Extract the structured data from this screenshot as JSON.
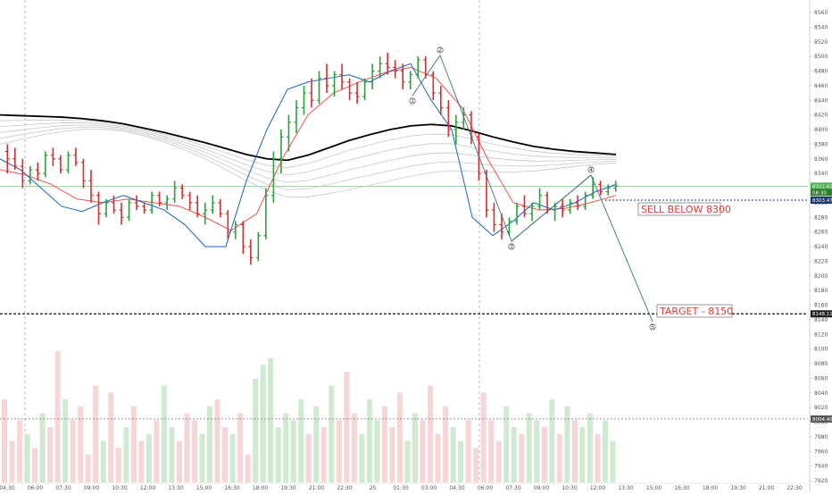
{
  "chart_data": {
    "type": "candlestick",
    "price_axis": {
      "ylim": [
        7920,
        8560
      ],
      "ticks": [
        8560,
        8540,
        8520,
        8500,
        8480,
        8460,
        8440,
        8420,
        8400,
        8380,
        8360,
        8340,
        8320,
        8300,
        8280,
        8260,
        8240,
        8220,
        8200,
        8180,
        8160,
        8140,
        8120,
        8100,
        8080,
        8060,
        8040,
        8020,
        8000,
        7980,
        7960,
        7940,
        7920
      ]
    },
    "time_axis": {
      "ticks": [
        "04:30",
        "06:00",
        "07:30",
        "09:00",
        "10:30",
        "12:00",
        "13:30",
        "15:00",
        "16:30",
        "18:00",
        "19:30",
        "21:00",
        "22:30",
        "25",
        "01:30",
        "03:00",
        "04:30",
        "06:00",
        "07:30",
        "09:00",
        "10:30",
        "12:00",
        "13:30",
        "15:00",
        "16:30",
        "18:00",
        "19:30",
        "21:00",
        "22:30"
      ]
    },
    "price_tags": [
      {
        "value": "8322.63",
        "color": "#4caf50"
      },
      {
        "value": "08:30",
        "color": "#2e7d32"
      },
      {
        "value": "8303.47",
        "color": "#1a3a6b"
      },
      {
        "value": "8148.11",
        "color": "#222222"
      },
      {
        "value": "8004.40",
        "color": "#555555"
      }
    ],
    "levels": {
      "current": 8322.63,
      "sell_below": 8303.47,
      "target": 8148.11,
      "volume_ref": 8004.4
    },
    "wave_labels": [
      "1",
      "2",
      "3",
      "4",
      "5"
    ],
    "annotations": [
      {
        "text": "SELL BELOW 8300"
      },
      {
        "text": "TARGET - 8150"
      }
    ],
    "candles": [
      [
        8370,
        8380,
        8340,
        8360
      ],
      [
        8360,
        8375,
        8345,
        8350
      ],
      [
        8350,
        8360,
        8320,
        8330
      ],
      [
        8330,
        8350,
        8325,
        8345
      ],
      [
        8345,
        8355,
        8330,
        8340
      ],
      [
        8340,
        8370,
        8335,
        8365
      ],
      [
        8365,
        8375,
        8350,
        8360
      ],
      [
        8360,
        8365,
        8340,
        8345
      ],
      [
        8345,
        8370,
        8340,
        8365
      ],
      [
        8365,
        8375,
        8350,
        8355
      ],
      [
        8355,
        8360,
        8320,
        8330
      ],
      [
        8330,
        8345,
        8300,
        8310
      ],
      [
        8310,
        8315,
        8270,
        8285
      ],
      [
        8285,
        8305,
        8280,
        8300
      ],
      [
        8300,
        8310,
        8285,
        8290
      ],
      [
        8290,
        8300,
        8270,
        8280
      ],
      [
        8280,
        8305,
        8275,
        8300
      ],
      [
        8300,
        8310,
        8290,
        8295
      ],
      [
        8295,
        8300,
        8285,
        8290
      ],
      [
        8290,
        8315,
        8285,
        8310
      ],
      [
        8310,
        8315,
        8295,
        8300
      ],
      [
        8300,
        8310,
        8290,
        8305
      ],
      [
        8305,
        8330,
        8300,
        8320
      ],
      [
        8320,
        8325,
        8305,
        8310
      ],
      [
        8310,
        8315,
        8290,
        8300
      ],
      [
        8300,
        8310,
        8280,
        8285
      ],
      [
        8285,
        8300,
        8270,
        8290
      ],
      [
        8290,
        8310,
        8285,
        8300
      ],
      [
        8300,
        8305,
        8280,
        8285
      ],
      [
        8285,
        8290,
        8250,
        8260
      ],
      [
        8260,
        8275,
        8250,
        8270
      ],
      [
        8270,
        8275,
        8230,
        8240
      ],
      [
        8240,
        8250,
        8215,
        8225
      ],
      [
        8225,
        8260,
        8220,
        8255
      ],
      [
        8255,
        8320,
        8250,
        8310
      ],
      [
        8310,
        8370,
        8300,
        8360
      ],
      [
        8360,
        8400,
        8340,
        8390
      ],
      [
        8390,
        8420,
        8370,
        8410
      ],
      [
        8410,
        8440,
        8395,
        8430
      ],
      [
        8430,
        8460,
        8420,
        8450
      ],
      [
        8450,
        8470,
        8430,
        8440
      ],
      [
        8440,
        8480,
        8435,
        8470
      ],
      [
        8470,
        8490,
        8450,
        8460
      ],
      [
        8460,
        8480,
        8445,
        8475
      ],
      [
        8475,
        8490,
        8455,
        8465
      ],
      [
        8465,
        8470,
        8440,
        8450
      ],
      [
        8450,
        8465,
        8435,
        8445
      ],
      [
        8445,
        8470,
        8440,
        8465
      ],
      [
        8465,
        8490,
        8455,
        8480
      ],
      [
        8480,
        8500,
        8470,
        8490
      ],
      [
        8490,
        8505,
        8475,
        8485
      ],
      [
        8485,
        8495,
        8470,
        8480
      ],
      [
        8480,
        8490,
        8455,
        8465
      ],
      [
        8465,
        8480,
        8455,
        8475
      ],
      [
        8475,
        8500,
        8470,
        8495
      ],
      [
        8495,
        8500,
        8470,
        8475
      ],
      [
        8475,
        8480,
        8440,
        8450
      ],
      [
        8450,
        8460,
        8420,
        8430
      ],
      [
        8430,
        8440,
        8390,
        8400
      ],
      [
        8400,
        8420,
        8380,
        8410
      ],
      [
        8410,
        8430,
        8400,
        8420
      ],
      [
        8420,
        8425,
        8380,
        8390
      ],
      [
        8390,
        8395,
        8330,
        8340
      ],
      [
        8340,
        8345,
        8280,
        8290
      ],
      [
        8290,
        8300,
        8260,
        8270
      ],
      [
        8270,
        8285,
        8250,
        8260
      ],
      [
        8260,
        8280,
        8255,
        8275
      ],
      [
        8275,
        8300,
        8270,
        8295
      ],
      [
        8295,
        8310,
        8280,
        8285
      ],
      [
        8285,
        8300,
        8275,
        8295
      ],
      [
        8295,
        8320,
        8290,
        8310
      ],
      [
        8310,
        8315,
        8285,
        8290
      ],
      [
        8290,
        8300,
        8275,
        8295
      ],
      [
        8295,
        8305,
        8280,
        8290
      ],
      [
        8290,
        8305,
        8285,
        8300
      ],
      [
        8300,
        8310,
        8290,
        8295
      ],
      [
        8295,
        8315,
        8290,
        8310
      ],
      [
        8310,
        8335,
        8305,
        8325
      ],
      [
        8325,
        8330,
        8310,
        8315
      ],
      [
        8315,
        8325,
        8310,
        8320
      ],
      [
        8320,
        8330,
        8315,
        8323
      ]
    ],
    "moving_averages": [
      {
        "name": "",
        "color": "#000000",
        "values": [
          8420,
          8419,
          8418,
          8417,
          8415,
          8412,
          8408,
          8402,
          8396,
          8389,
          8382,
          8374,
          8366,
          8360,
          8358,
          8365,
          8375,
          8385,
          8393,
          8400,
          8405,
          8407,
          8405,
          8398,
          8390,
          8383,
          8377,
          8373,
          8370,
          8368,
          8366
        ]
      },
      {
        "name": "",
        "color": "#ef5350",
        "values": [
          8345,
          8338,
          8325,
          8305,
          8300,
          8305,
          8300,
          8295,
          8280,
          8262,
          8285,
          8360,
          8420,
          8450,
          8465,
          8478,
          8485,
          8470,
          8430,
          8360,
          8300,
          8290,
          8292,
          8300,
          8310
        ]
      },
      {
        "name": "",
        "color": "#1565c0",
        "values": [
          8360,
          8345,
          8320,
          8295,
          8288,
          8300,
          8310,
          8300,
          8290,
          8270,
          8240,
          8240,
          8330,
          8400,
          8455,
          8465,
          8470,
          8475,
          8465,
          8480,
          8490,
          8440,
          8400,
          8280,
          8255,
          8275,
          8300,
          8290,
          8300,
          8315,
          8325
        ]
      }
    ],
    "volume": [
      60,
      30,
      45,
      35,
      25,
      50,
      40,
      95,
      60,
      45,
      55,
      20,
      70,
      30,
      65,
      25,
      40,
      55,
      30,
      35,
      45,
      70,
      40,
      30,
      50,
      45,
      35,
      55,
      60,
      40,
      35,
      50,
      20,
      75,
      85,
      90,
      40,
      50,
      45,
      60,
      35,
      55,
      40,
      70,
      45,
      80,
      50,
      35,
      60,
      45,
      55,
      40,
      65,
      30,
      50,
      45,
      70,
      35,
      55,
      40,
      30,
      45,
      25,
      65,
      45,
      30,
      55,
      40,
      35,
      50,
      45,
      40,
      60,
      35,
      55,
      45,
      40,
      50,
      35,
      45,
      30
    ]
  }
}
